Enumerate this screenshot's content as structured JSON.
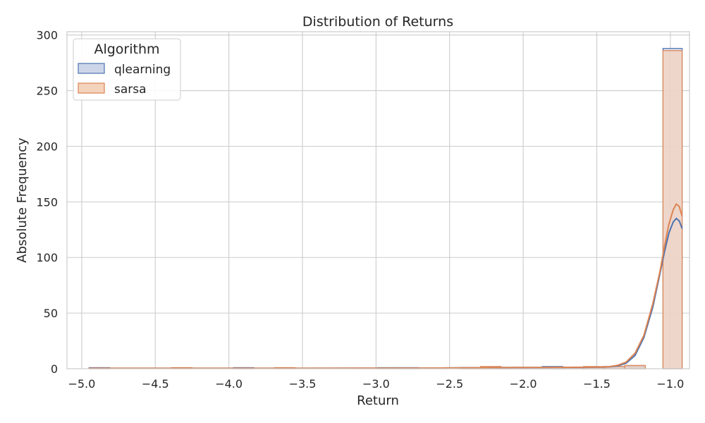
{
  "chart_data": {
    "type": "histogram",
    "title": "Distribution of Returns",
    "xlabel": "Return",
    "ylabel": "Absolute Frequency",
    "xlim": [
      -5.1,
      -0.87
    ],
    "ylim": [
      0,
      303
    ],
    "xticks": [
      -5.0,
      -4.5,
      -4.0,
      -3.5,
      -3.0,
      -2.5,
      -2.0,
      -1.5,
      -1.0
    ],
    "xtick_labels": [
      "−5.0",
      "−4.5",
      "−4.0",
      "−3.5",
      "−3.0",
      "−2.5",
      "−2.0",
      "−1.5",
      "−1.0"
    ],
    "yticks": [
      0,
      50,
      100,
      150,
      200,
      250,
      300
    ],
    "ytick_labels": [
      "0",
      "50",
      "100",
      "150",
      "200",
      "250",
      "300"
    ],
    "grid": true,
    "legend": {
      "title": "Algorithm",
      "placement": "top-left",
      "entries": [
        "qlearning",
        "sarsa"
      ]
    },
    "series": [
      {
        "name": "qlearning",
        "color": "#4c72b0",
        "fill": "#cdd6e8",
        "bins": [
          [
            -4.95,
            -4.81,
            1
          ],
          [
            -4.81,
            -4.67,
            0
          ],
          [
            -4.67,
            -4.53,
            0
          ],
          [
            -4.53,
            -4.39,
            0
          ],
          [
            -4.39,
            -4.25,
            0
          ],
          [
            -4.25,
            -4.11,
            0
          ],
          [
            -4.11,
            -3.97,
            0
          ],
          [
            -3.97,
            -3.83,
            1
          ],
          [
            -3.83,
            -3.69,
            0
          ],
          [
            -3.69,
            -3.55,
            0
          ],
          [
            -3.55,
            -3.41,
            0
          ],
          [
            -3.41,
            -3.27,
            0
          ],
          [
            -3.27,
            -3.13,
            0
          ],
          [
            -3.13,
            -2.99,
            0
          ],
          [
            -2.99,
            -2.85,
            1
          ],
          [
            -2.85,
            -2.71,
            1
          ],
          [
            -2.71,
            -2.57,
            0
          ],
          [
            -2.57,
            -2.43,
            0
          ],
          [
            -2.43,
            -2.29,
            1
          ],
          [
            -2.29,
            -2.15,
            1
          ],
          [
            -2.15,
            -2.01,
            1
          ],
          [
            -2.01,
            -1.87,
            1
          ],
          [
            -1.87,
            -1.73,
            2
          ],
          [
            -1.73,
            -1.59,
            1
          ],
          [
            -1.59,
            -1.45,
            1
          ],
          [
            -1.45,
            -1.31,
            2
          ],
          [
            -1.31,
            -1.17,
            2
          ],
          [
            -1.17,
            -1.05,
            0
          ],
          [
            -1.05,
            -0.92,
            288
          ]
        ],
        "kde": [
          [
            -4.95,
            0.4
          ],
          [
            -4.5,
            0.4
          ],
          [
            -4.0,
            0.4
          ],
          [
            -3.5,
            0.4
          ],
          [
            -3.0,
            0.5
          ],
          [
            -2.6,
            0.6
          ],
          [
            -2.4,
            0.8
          ],
          [
            -2.2,
            1.0
          ],
          [
            -2.0,
            1.1
          ],
          [
            -1.8,
            1.2
          ],
          [
            -1.6,
            1.2
          ],
          [
            -1.5,
            1.3
          ],
          [
            -1.42,
            1.6
          ],
          [
            -1.36,
            2.5
          ],
          [
            -1.3,
            5
          ],
          [
            -1.24,
            12
          ],
          [
            -1.18,
            28
          ],
          [
            -1.12,
            55
          ],
          [
            -1.07,
            86
          ],
          [
            -1.04,
            105
          ],
          [
            -1.01,
            122
          ],
          [
            -0.98,
            132
          ],
          [
            -0.96,
            135
          ],
          [
            -0.94,
            133
          ],
          [
            -0.92,
            126
          ]
        ]
      },
      {
        "name": "sarsa",
        "color": "#dd8452",
        "fill": "#f4d3bd",
        "bins": [
          [
            -4.95,
            -4.81,
            0
          ],
          [
            -4.81,
            -4.67,
            0
          ],
          [
            -4.67,
            -4.53,
            0
          ],
          [
            -4.53,
            -4.39,
            0
          ],
          [
            -4.39,
            -4.25,
            1
          ],
          [
            -4.25,
            -4.11,
            0
          ],
          [
            -4.11,
            -3.97,
            0
          ],
          [
            -3.97,
            -3.83,
            0
          ],
          [
            -3.83,
            -3.69,
            0
          ],
          [
            -3.69,
            -3.55,
            1
          ],
          [
            -3.55,
            -3.41,
            0
          ],
          [
            -3.41,
            -3.27,
            0
          ],
          [
            -3.27,
            -3.13,
            0
          ],
          [
            -3.13,
            -2.99,
            0
          ],
          [
            -2.99,
            -2.85,
            0
          ],
          [
            -2.85,
            -2.71,
            0
          ],
          [
            -2.71,
            -2.57,
            0
          ],
          [
            -2.57,
            -2.43,
            0
          ],
          [
            -2.43,
            -2.29,
            1
          ],
          [
            -2.29,
            -2.15,
            2
          ],
          [
            -2.15,
            -2.01,
            1
          ],
          [
            -2.01,
            -1.87,
            1
          ],
          [
            -1.87,
            -1.73,
            1
          ],
          [
            -1.73,
            -1.59,
            1
          ],
          [
            -1.59,
            -1.45,
            2
          ],
          [
            -1.45,
            -1.31,
            2
          ],
          [
            -1.31,
            -1.17,
            3
          ],
          [
            -1.17,
            -1.05,
            0
          ],
          [
            -1.05,
            -0.92,
            286
          ]
        ],
        "kde": [
          [
            -4.95,
            0.4
          ],
          [
            -4.5,
            0.4
          ],
          [
            -4.0,
            0.4
          ],
          [
            -3.5,
            0.4
          ],
          [
            -3.0,
            0.5
          ],
          [
            -2.6,
            0.6
          ],
          [
            -2.4,
            0.8
          ],
          [
            -2.2,
            1.0
          ],
          [
            -2.0,
            1.1
          ],
          [
            -1.8,
            1.2
          ],
          [
            -1.6,
            1.3
          ],
          [
            -1.5,
            1.4
          ],
          [
            -1.42,
            1.8
          ],
          [
            -1.36,
            3
          ],
          [
            -1.3,
            6
          ],
          [
            -1.24,
            14
          ],
          [
            -1.18,
            30
          ],
          [
            -1.12,
            58
          ],
          [
            -1.07,
            88
          ],
          [
            -1.04,
            110
          ],
          [
            -1.01,
            130
          ],
          [
            -0.98,
            143
          ],
          [
            -0.96,
            148
          ],
          [
            -0.94,
            146
          ],
          [
            -0.92,
            137
          ]
        ]
      }
    ]
  }
}
